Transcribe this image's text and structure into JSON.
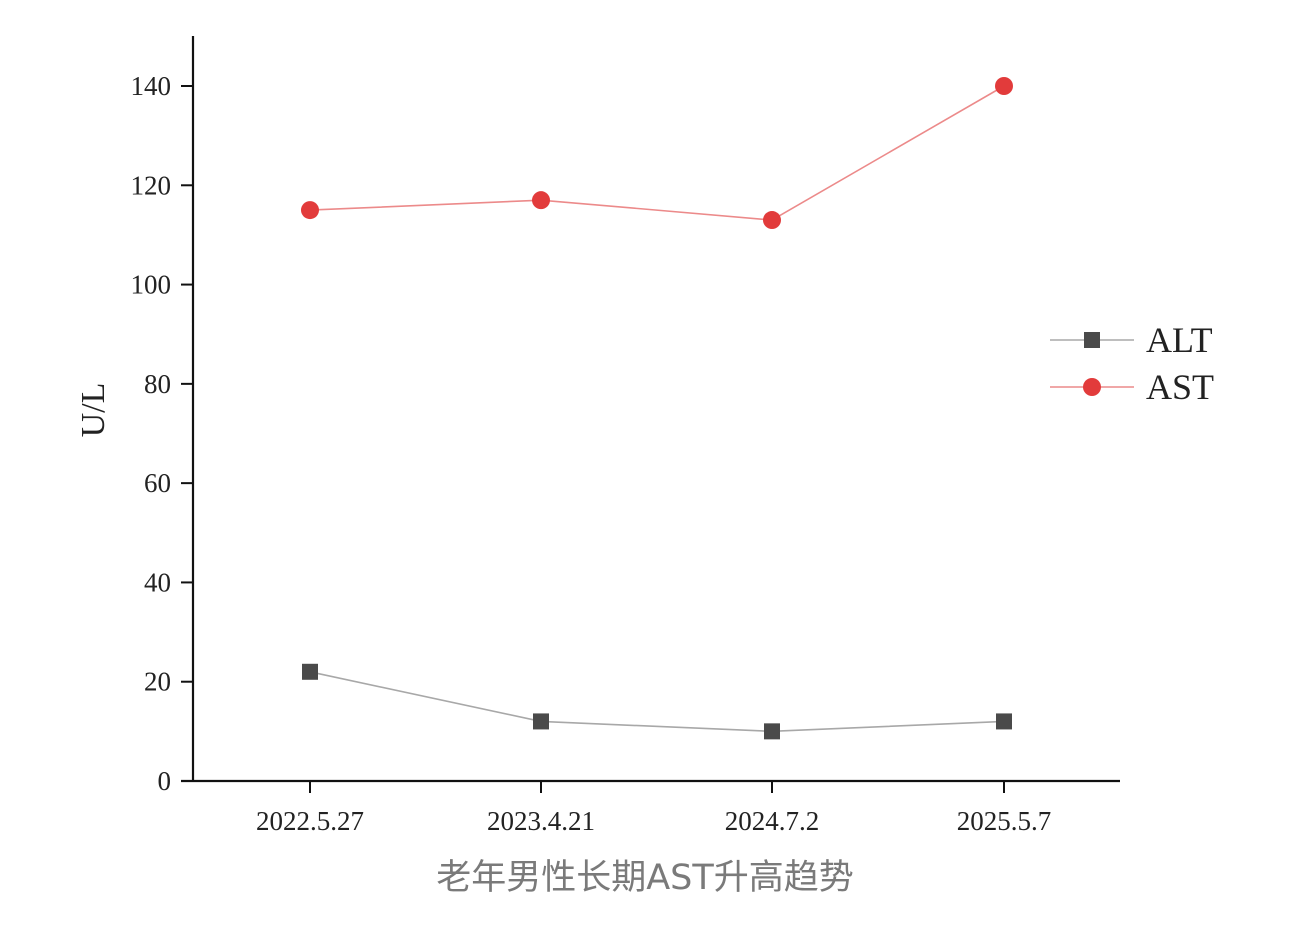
{
  "caption": "老年男性长期AST升高趋势",
  "chart_data": {
    "type": "line",
    "title": "",
    "xlabel": "",
    "ylabel": "U/L",
    "categories": [
      "2022.5.27",
      "2023.4.21",
      "2024.7.2",
      "2025.5.7"
    ],
    "ylim": [
      0,
      150
    ],
    "yticks": [
      0,
      20,
      40,
      60,
      80,
      100,
      120,
      140
    ],
    "grid": false,
    "legend_position": "right",
    "series": [
      {
        "name": "ALT",
        "marker": "square",
        "color": "#4a4a4a",
        "line_color": "#a8a8a8",
        "values": [
          22,
          12,
          10,
          12
        ]
      },
      {
        "name": "AST",
        "marker": "circle",
        "color": "#e23b3b",
        "line_color": "#ec8a8a",
        "values": [
          115,
          117,
          113,
          140
        ]
      }
    ]
  }
}
